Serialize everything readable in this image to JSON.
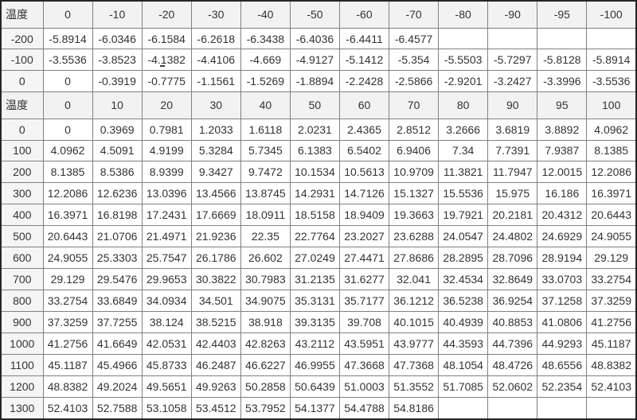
{
  "table": {
    "corner_label": "温度",
    "caret_cell": {
      "row": 2,
      "col": 3
    },
    "rows": [
      {
        "type": "header",
        "cells": [
          "温度",
          "0",
          "-10",
          "-20",
          "-30",
          "-40",
          "-50",
          "-60",
          "-70",
          "-80",
          "-90",
          "-95",
          "-100"
        ]
      },
      {
        "type": "data",
        "cells": [
          "-200",
          "-5.8914",
          "-6.0346",
          "-6.1584",
          "-6.2618",
          "-6.3438",
          "-6.4036",
          "-6.4411",
          "-6.4577",
          "",
          "",
          "",
          ""
        ]
      },
      {
        "type": "data",
        "cells": [
          "-100",
          "-3.5536",
          "-3.8523",
          "-4.1382",
          "-4.4106",
          "-4.669",
          "-4.9127",
          "-5.1412",
          "-5.354",
          "-5.5503",
          "-5.7297",
          "-5.8128",
          "-5.8914"
        ]
      },
      {
        "type": "data",
        "cells": [
          "0",
          "0",
          "-0.3919",
          "-0.7775",
          "-1.1561",
          "-1.5269",
          "-1.8894",
          "-2.2428",
          "-2.5866",
          "-2.9201",
          "-3.2427",
          "-3.3996",
          "-3.5536"
        ]
      },
      {
        "type": "header",
        "cells": [
          "温度",
          "0",
          "10",
          "20",
          "30",
          "40",
          "50",
          "60",
          "70",
          "80",
          "90",
          "95",
          "100"
        ]
      },
      {
        "type": "data",
        "cells": [
          "0",
          "0",
          "0.3969",
          "0.7981",
          "1.2033",
          "1.6118",
          "2.0231",
          "2.4365",
          "2.8512",
          "3.2666",
          "3.6819",
          "3.8892",
          "4.0962"
        ]
      },
      {
        "type": "data",
        "cells": [
          "100",
          "4.0962",
          "4.5091",
          "4.9199",
          "5.3284",
          "5.7345",
          "6.1383",
          "6.5402",
          "6.9406",
          "7.34",
          "7.7391",
          "7.9387",
          "8.1385"
        ]
      },
      {
        "type": "data",
        "cells": [
          "200",
          "8.1385",
          "8.5386",
          "8.9399",
          "9.3427",
          "9.7472",
          "10.1534",
          "10.5613",
          "10.9709",
          "11.3821",
          "11.7947",
          "12.0015",
          "12.2086"
        ]
      },
      {
        "type": "data",
        "cells": [
          "300",
          "12.2086",
          "12.6236",
          "13.0396",
          "13.4566",
          "13.8745",
          "14.2931",
          "14.7126",
          "15.1327",
          "15.5536",
          "15.975",
          "16.186",
          "16.3971"
        ]
      },
      {
        "type": "data",
        "cells": [
          "400",
          "16.3971",
          "16.8198",
          "17.2431",
          "17.6669",
          "18.0911",
          "18.5158",
          "18.9409",
          "19.3663",
          "19.7921",
          "20.2181",
          "20.4312",
          "20.6443"
        ]
      },
      {
        "type": "data",
        "cells": [
          "500",
          "20.6443",
          "21.0706",
          "21.4971",
          "21.9236",
          "22.35",
          "22.7764",
          "23.2027",
          "23.6288",
          "24.0547",
          "24.4802",
          "24.6929",
          "24.9055"
        ]
      },
      {
        "type": "data",
        "cells": [
          "600",
          "24.9055",
          "25.3303",
          "25.7547",
          "26.1786",
          "26.602",
          "27.0249",
          "27.4471",
          "27.8686",
          "28.2895",
          "28.7096",
          "28.9194",
          "29.129"
        ]
      },
      {
        "type": "data",
        "cells": [
          "700",
          "29.129",
          "29.5476",
          "29.9653",
          "30.3822",
          "30.7983",
          "31.2135",
          "31.6277",
          "32.041",
          "32.4534",
          "32.8649",
          "33.0703",
          "33.2754"
        ]
      },
      {
        "type": "data",
        "cells": [
          "800",
          "33.2754",
          "33.6849",
          "34.0934",
          "34.501",
          "34.9075",
          "35.3131",
          "35.7177",
          "36.1212",
          "36.5238",
          "36.9254",
          "37.1258",
          "37.3259"
        ]
      },
      {
        "type": "data",
        "cells": [
          "900",
          "37.3259",
          "37.7255",
          "38.124",
          "38.5215",
          "38.918",
          "39.3135",
          "39.708",
          "40.1015",
          "40.4939",
          "40.8853",
          "41.0806",
          "41.2756"
        ]
      },
      {
        "type": "data",
        "cells": [
          "1000",
          "41.2756",
          "41.6649",
          "42.0531",
          "42.4403",
          "42.8263",
          "43.2112",
          "43.5951",
          "43.9777",
          "44.3593",
          "44.7396",
          "44.9293",
          "45.1187"
        ]
      },
      {
        "type": "data",
        "cells": [
          "1100",
          "45.1187",
          "45.4966",
          "45.8733",
          "46.2487",
          "46.6227",
          "46.9955",
          "47.3668",
          "47.7368",
          "48.1054",
          "48.4726",
          "48.6556",
          "48.8382"
        ]
      },
      {
        "type": "data",
        "cells": [
          "1200",
          "48.8382",
          "49.2024",
          "49.5651",
          "49.9263",
          "50.2858",
          "50.6439",
          "51.0003",
          "51.3552",
          "51.7085",
          "52.0602",
          "52.2354",
          "52.4103"
        ]
      },
      {
        "type": "data",
        "cells": [
          "1300",
          "52.4103",
          "52.7588",
          "53.1058",
          "53.4512",
          "53.7952",
          "54.1377",
          "54.4788",
          "54.8186",
          "",
          "",
          "",
          ""
        ]
      }
    ]
  },
  "colors": {
    "header_bg": "#f2f2f2",
    "label_bg": "#f5f5f5",
    "border_inner": "#808080",
    "border_outer": "#262626",
    "text": "#333333",
    "page_bg": "#ffffff"
  }
}
